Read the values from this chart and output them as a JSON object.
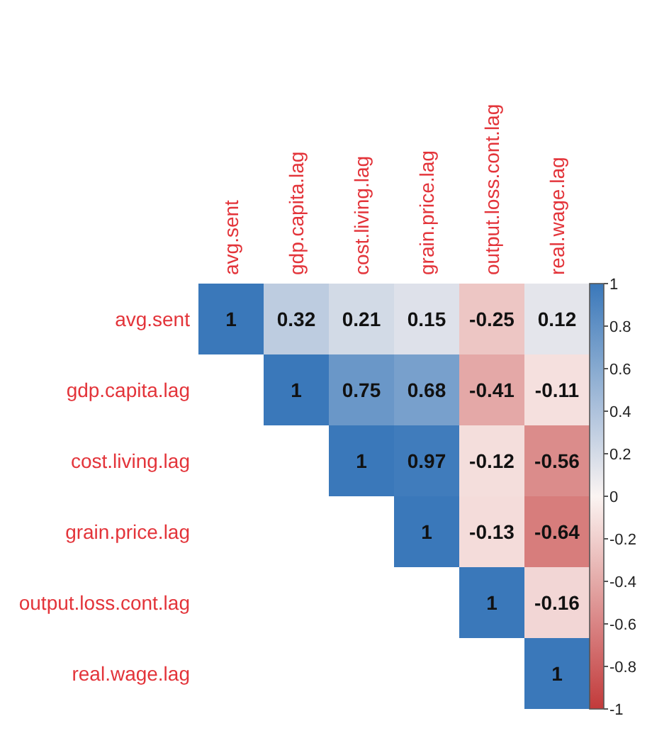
{
  "chart_data": {
    "type": "heatmap",
    "categories": [
      "avg.sent",
      "gdp.capita.lag",
      "cost.living.lag",
      "grain.price.lag",
      "output.loss.cont.lag",
      "real.wage.lag"
    ],
    "y_categories": [
      "avg.sent",
      "gdp.capita.lag",
      "cost.living.lag",
      "grain.price.lag",
      "output.loss.cont.lag",
      "real.wage.lag"
    ],
    "cells": [
      [
        1,
        0.32,
        0.21,
        0.15,
        -0.25,
        0.12
      ],
      [
        null,
        1,
        0.75,
        0.68,
        -0.41,
        -0.11
      ],
      [
        null,
        null,
        1,
        0.97,
        -0.12,
        -0.56
      ],
      [
        null,
        null,
        null,
        1,
        -0.13,
        -0.64
      ],
      [
        null,
        null,
        null,
        null,
        1,
        -0.16
      ],
      [
        null,
        null,
        null,
        null,
        null,
        1
      ]
    ],
    "data_labels": true,
    "clim": [
      -1,
      1
    ],
    "cticks": [
      1,
      0.8,
      0.6,
      0.4,
      0.2,
      0,
      -0.2,
      -0.4,
      -0.6,
      -0.8,
      -1
    ]
  }
}
